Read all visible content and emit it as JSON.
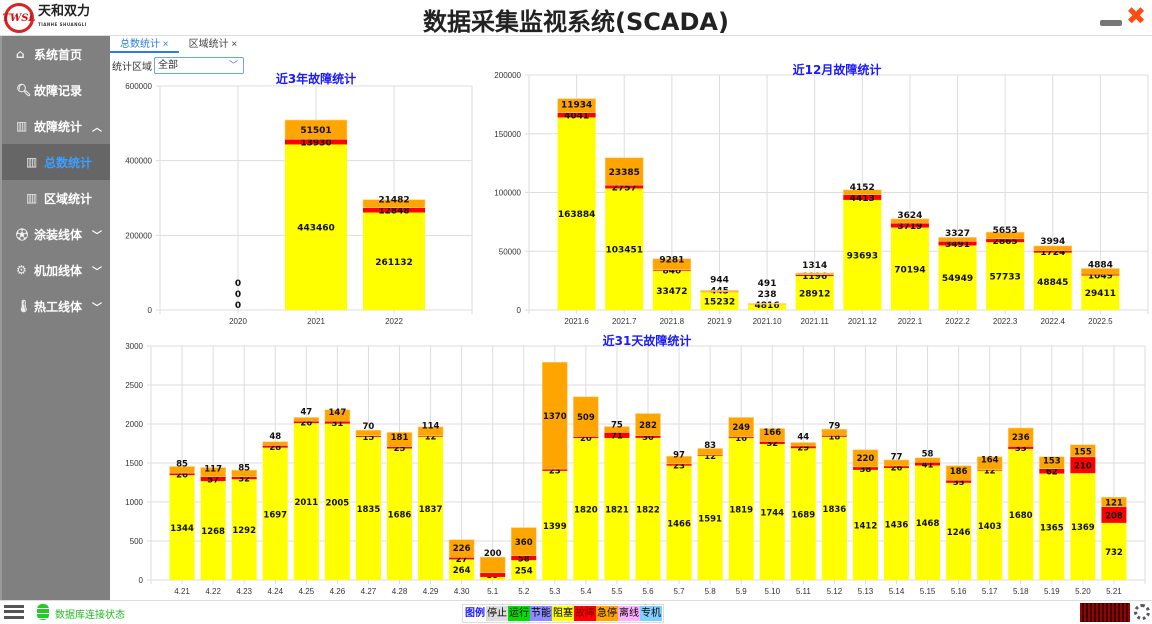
{
  "header": {
    "title": "数据采集监视系统(SCADA)",
    "logo_mark": "TWSL",
    "logo_name": "天和双力",
    "logo_sub": "TIANHE SHUANGLI",
    "minimize_icon": "minimize-icon",
    "close_icon": "close-x-icon",
    "close_color": "#ff4a10"
  },
  "sidebar": {
    "items": [
      {
        "label": "系统首页",
        "icon": "home-icon"
      },
      {
        "label": "故障记录",
        "icon": "search-icon"
      },
      {
        "label": "故障统计",
        "icon": "bar-chart-icon",
        "chevron": "^"
      },
      {
        "label": "总数统计",
        "icon": "bar-chart-icon",
        "active": true
      },
      {
        "label": "区域统计",
        "icon": "bar-chart-icon"
      },
      {
        "label": "涂装线体",
        "icon": "soccer-ball-icon",
        "chevron": "v"
      },
      {
        "label": "机加线体",
        "icon": "gears-icon",
        "chevron": "v"
      },
      {
        "label": "热工线体",
        "icon": "thermometer-icon",
        "chevron": "v"
      }
    ]
  },
  "tabs": [
    {
      "label": "总数统计 ×",
      "active": true
    },
    {
      "label": "区域统计 ×"
    }
  ],
  "filter": {
    "label": "统计区域",
    "value": "全部"
  },
  "footer": {
    "db_status": "数据库连接状态",
    "legend_title": "图例",
    "legend": [
      {
        "label": "停止",
        "color": "#dddddd"
      },
      {
        "label": "运行",
        "color": "#00e000"
      },
      {
        "label": "节能",
        "color": "#8c8cff"
      },
      {
        "label": "阻塞",
        "color": "#ffff00"
      },
      {
        "label": "故障",
        "color": "#ff0000"
      },
      {
        "label": "急停",
        "color": "#ffa500"
      },
      {
        "label": "离线",
        "color": "#ffb0ff"
      },
      {
        "label": "专机",
        "color": "#80d0ff"
      }
    ]
  },
  "chart_data": [
    {
      "type": "bar",
      "stacked": true,
      "title": "近3年故障统计",
      "categories": [
        "2020",
        "2021",
        "2022"
      ],
      "ylim": [
        0,
        600000
      ],
      "yticks": [
        0,
        200000,
        400000,
        600000
      ],
      "grid": true,
      "series": [
        {
          "name": "阻塞",
          "color": "#ffff00",
          "values": [
            0,
            443460,
            261132
          ]
        },
        {
          "name": "故障",
          "color": "#ff0000",
          "values": [
            0,
            13930,
            12848
          ]
        },
        {
          "name": "急停",
          "color": "#ffa500",
          "values": [
            0,
            51501,
            21482
          ]
        }
      ]
    },
    {
      "type": "bar",
      "stacked": true,
      "title": "近12月故障统计",
      "categories": [
        "2021.6",
        "2021.7",
        "2021.8",
        "2021.9",
        "2021.10",
        "2021.11",
        "2021.12",
        "2022.1",
        "2022.2",
        "2022.3",
        "2022.4",
        "2022.5"
      ],
      "ylim": [
        0,
        200000
      ],
      "yticks": [
        0,
        50000,
        100000,
        150000,
        200000
      ],
      "grid": true,
      "series": [
        {
          "name": "阻塞",
          "color": "#ffff00",
          "values": [
            163884,
            103451,
            33472,
            15232,
            4816,
            28912,
            93693,
            70194,
            54949,
            57733,
            48845,
            29411
          ]
        },
        {
          "name": "故障",
          "color": "#ff0000",
          "values": [
            4041,
            2757,
            840,
            445,
            238,
            1196,
            4413,
            3719,
            3491,
            2865,
            1724,
            1049
          ]
        },
        {
          "name": "急停",
          "color": "#ffa500",
          "values": [
            11934,
            23385,
            9281,
            944,
            491,
            1314,
            4152,
            3624,
            3327,
            5653,
            3994,
            4884
          ]
        }
      ]
    },
    {
      "type": "bar",
      "stacked": true,
      "title": "近31天故障统计",
      "categories": [
        "4.21",
        "4.22",
        "4.23",
        "4.24",
        "4.25",
        "4.26",
        "4.27",
        "4.28",
        "4.29",
        "4.30",
        "5.1",
        "5.2",
        "5.3",
        "5.4",
        "5.5",
        "5.6",
        "5.7",
        "5.8",
        "5.9",
        "5.10",
        "5.11",
        "5.12",
        "5.13",
        "5.14",
        "5.15",
        "5.16",
        "5.17",
        "5.18",
        "5.19",
        "5.20",
        "5.21"
      ],
      "ylim": [
        0,
        3000
      ],
      "yticks": [
        0,
        500,
        1000,
        1500,
        2000,
        2500,
        3000
      ],
      "grid": true,
      "series": [
        {
          "name": "阻塞",
          "color": "#ffff00",
          "values": [
            1344,
            1268,
            1292,
            1697,
            2011,
            2005,
            1835,
            1686,
            1837,
            264,
            39,
            254,
            1399,
            1820,
            1821,
            1822,
            1466,
            1591,
            1819,
            1744,
            1689,
            1836,
            1412,
            1436,
            1468,
            1246,
            1403,
            1680,
            1365,
            1369,
            732
          ]
        },
        {
          "name": "故障",
          "color": "#ff0000",
          "values": [
            26,
            57,
            32,
            28,
            26,
            31,
            15,
            25,
            12,
            27,
            54,
            58,
            23,
            20,
            71,
            30,
            23,
            12,
            16,
            32,
            29,
            18,
            38,
            26,
            41,
            33,
            12,
            33,
            62,
            210,
            208
          ]
        },
        {
          "name": "急停",
          "color": "#ffa500",
          "values": [
            85,
            117,
            85,
            48,
            47,
            147,
            70,
            181,
            114,
            226,
            200,
            360,
            1370,
            509,
            75,
            282,
            97,
            83,
            249,
            166,
            44,
            79,
            220,
            77,
            58,
            186,
            164,
            236,
            153,
            155,
            121
          ]
        }
      ]
    }
  ]
}
